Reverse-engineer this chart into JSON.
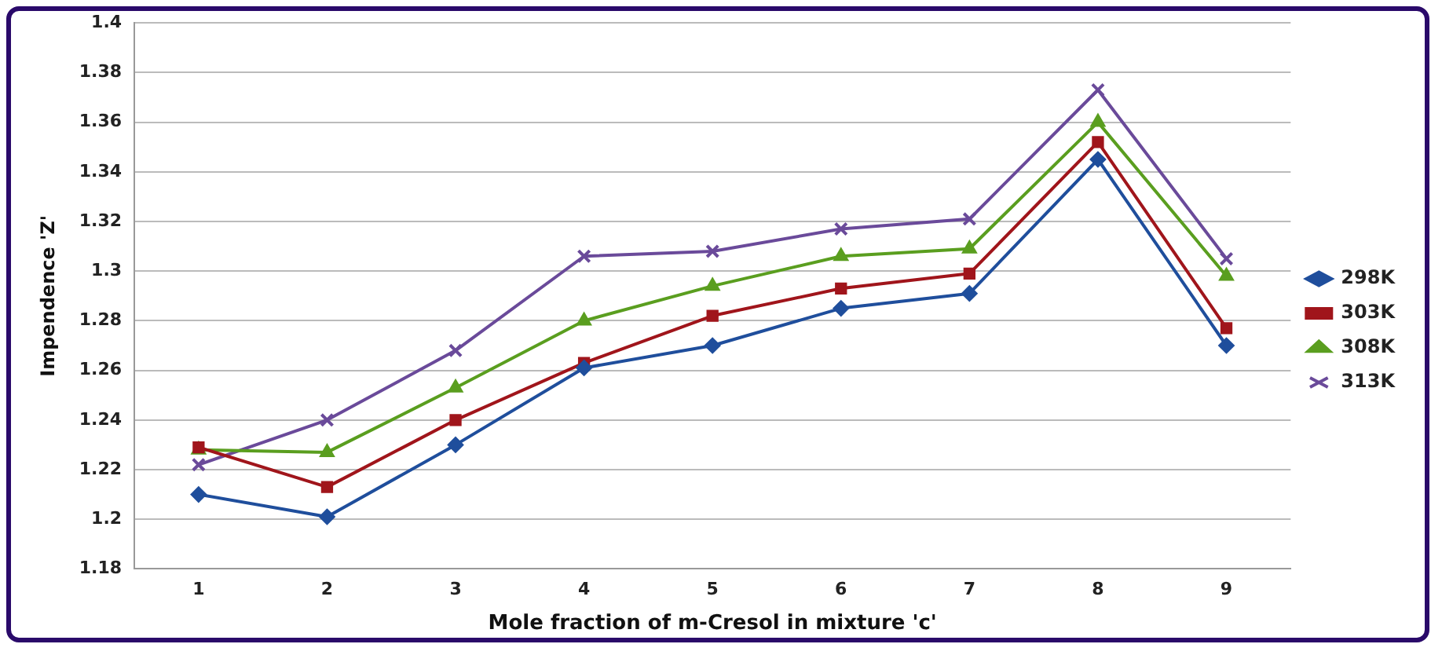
{
  "chart_data": {
    "type": "line",
    "xlabel": "Mole fraction of m-Cresol in mixture 'c'",
    "ylabel": "Impendence 'Z'",
    "categories": [
      "1",
      "2",
      "3",
      "4",
      "5",
      "6",
      "7",
      "8",
      "9"
    ],
    "ylim": [
      1.18,
      1.4
    ],
    "yticks": [
      1.18,
      1.2,
      1.22,
      1.24,
      1.26,
      1.28,
      1.3,
      1.32,
      1.34,
      1.36,
      1.38,
      1.4
    ],
    "grid": "y",
    "legend": "right",
    "series": [
      {
        "name": "298K",
        "color": "#1f4e9c",
        "marker": "diamond",
        "values": [
          1.21,
          1.201,
          1.23,
          1.261,
          1.27,
          1.285,
          1.291,
          1.345,
          1.27
        ]
      },
      {
        "name": "303K",
        "color": "#a0151b",
        "marker": "square",
        "values": [
          1.229,
          1.213,
          1.24,
          1.263,
          1.282,
          1.293,
          1.299,
          1.352,
          1.277
        ]
      },
      {
        "name": "308K",
        "color": "#5a9e1f",
        "marker": "triangle",
        "values": [
          1.228,
          1.227,
          1.253,
          1.28,
          1.294,
          1.306,
          1.309,
          1.36,
          1.298
        ]
      },
      {
        "name": "313K",
        "color": "#6a4a9a",
        "marker": "cross",
        "values": [
          1.222,
          1.24,
          1.268,
          1.306,
          1.308,
          1.317,
          1.321,
          1.373,
          1.305
        ]
      }
    ]
  }
}
